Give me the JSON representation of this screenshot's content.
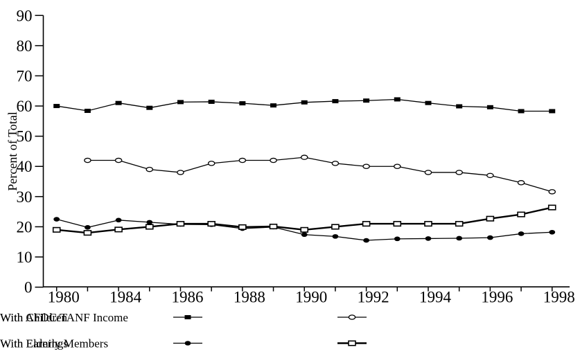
{
  "chart_data": {
    "type": "line",
    "title": "",
    "xlabel": "",
    "ylabel": "Percent of Total",
    "ylim": [
      0,
      90
    ],
    "ytick_step": 10,
    "grid": false,
    "legend_position": "bottom",
    "background_color": "#ffffff",
    "line_color": "#000000",
    "categories": [
      "1980",
      "1982",
      "1984",
      "1985",
      "1986",
      "1987",
      "1988",
      "1989",
      "1990",
      "1991",
      "1992",
      "1993",
      "1994",
      "1995",
      "1996",
      "1997",
      "1998"
    ],
    "xtick_label_indices": [
      0,
      2,
      4,
      6,
      8,
      10,
      12,
      14,
      16
    ],
    "xtick_labels_shown": [
      "1980",
      "1984",
      "1986",
      "1988",
      "1990",
      "1992",
      "1994",
      "1996",
      "1998"
    ],
    "series": [
      {
        "name": "With Children",
        "marker": "filled-square",
        "line_width": 1.3,
        "values": [
          60.0,
          58.4,
          61.0,
          59.4,
          61.3,
          61.4,
          60.9,
          60.2,
          61.2,
          61.6,
          61.8,
          62.2,
          61.0,
          59.9,
          59.6,
          58.3,
          58.3
        ]
      },
      {
        "name": "With AFDC/TANF Income",
        "marker": "open-circle",
        "line_width": 1.3,
        "values": [
          null,
          42.0,
          42.0,
          39.0,
          38.0,
          41.0,
          42.0,
          42.0,
          43.0,
          41.0,
          40.0,
          40.0,
          38.0,
          38.0,
          37.0,
          34.6,
          31.6
        ]
      },
      {
        "name": "With Elderly Members",
        "marker": "filled-circle",
        "line_width": 1.3,
        "values": [
          22.5,
          19.8,
          22.2,
          21.5,
          20.8,
          20.7,
          19.4,
          19.9,
          17.4,
          16.8,
          15.5,
          16.0,
          16.1,
          16.2,
          16.4,
          17.7,
          18.2
        ]
      },
      {
        "name": "With Earnings",
        "marker": "open-square",
        "line_width": 2.4,
        "values": [
          19.0,
          18.0,
          19.1,
          20.0,
          21.0,
          21.0,
          19.9,
          20.1,
          19.0,
          20.0,
          21.0,
          21.0,
          21.0,
          21.0,
          22.7,
          24.1,
          26.4
        ]
      }
    ],
    "legend": {
      "rows": [
        [
          "With Children",
          "With AFDC/TANF Income"
        ],
        [
          "With Elderly Members",
          "With Earnings"
        ]
      ]
    }
  }
}
